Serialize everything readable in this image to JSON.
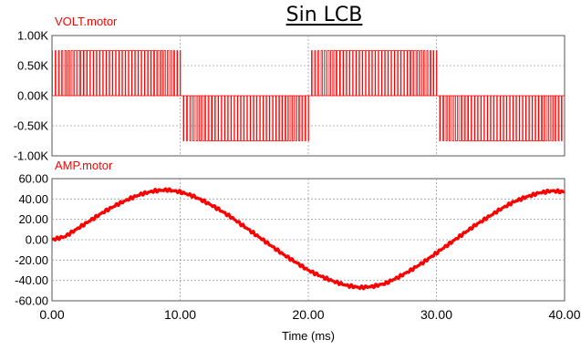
{
  "figure_title": "Sin LCB",
  "xlabel": "Time (ms)",
  "chart_data": [
    {
      "type": "line",
      "series": [
        {
          "name": "VOLT.motor",
          "color": "#ff0000",
          "description_pwm": true,
          "pwm_levels": [
            -750,
            0,
            750
          ],
          "fundamental_period_ms": 20
        }
      ],
      "title": "VOLT.motor",
      "xlabel": "",
      "ylabel": "",
      "xlim": [
        0,
        40
      ],
      "ylim": [
        -1000,
        1000
      ],
      "yticks": [
        -1000,
        -500,
        0,
        500,
        1000
      ],
      "ytick_labels": [
        "-1.00K",
        "-0.50K",
        "0.00K",
        "0.50K",
        "1.00K"
      ],
      "grid": true
    },
    {
      "type": "line",
      "series": [
        {
          "name": "AMP.motor",
          "color": "#ff0000",
          "x": [
            0,
            1,
            2,
            3,
            4,
            5,
            6,
            7,
            8,
            9,
            10,
            11,
            12,
            13,
            14,
            15,
            16,
            17,
            18,
            19,
            20,
            21,
            22,
            23,
            24,
            25,
            26,
            27,
            28,
            29,
            30,
            31,
            32,
            33,
            34,
            35,
            36,
            37,
            38,
            39,
            40
          ],
          "values": [
            0,
            3,
            11,
            19,
            27,
            34,
            40,
            45,
            48,
            49,
            47,
            43,
            37,
            30,
            22,
            13,
            4,
            -5,
            -14,
            -22,
            -30,
            -36,
            -41,
            -45,
            -47,
            -46,
            -43,
            -37,
            -30,
            -22,
            -13,
            -4,
            5,
            14,
            22,
            30,
            37,
            42,
            46,
            48,
            47
          ]
        }
      ],
      "title": "AMP.motor",
      "xlabel": "Time (ms)",
      "ylabel": "",
      "xlim": [
        0,
        40
      ],
      "ylim": [
        -60,
        60
      ],
      "xticks": [
        0,
        10,
        20,
        30,
        40
      ],
      "xtick_labels": [
        "0.00",
        "10.00",
        "20.00",
        "30.00",
        "40.00"
      ],
      "yticks": [
        -60,
        -40,
        -20,
        0,
        20,
        40,
        60
      ],
      "ytick_labels": [
        "-60.00",
        "-40.00",
        "-20.00",
        "0.00",
        "20.00",
        "40.00",
        "60.00"
      ],
      "grid": true
    }
  ]
}
